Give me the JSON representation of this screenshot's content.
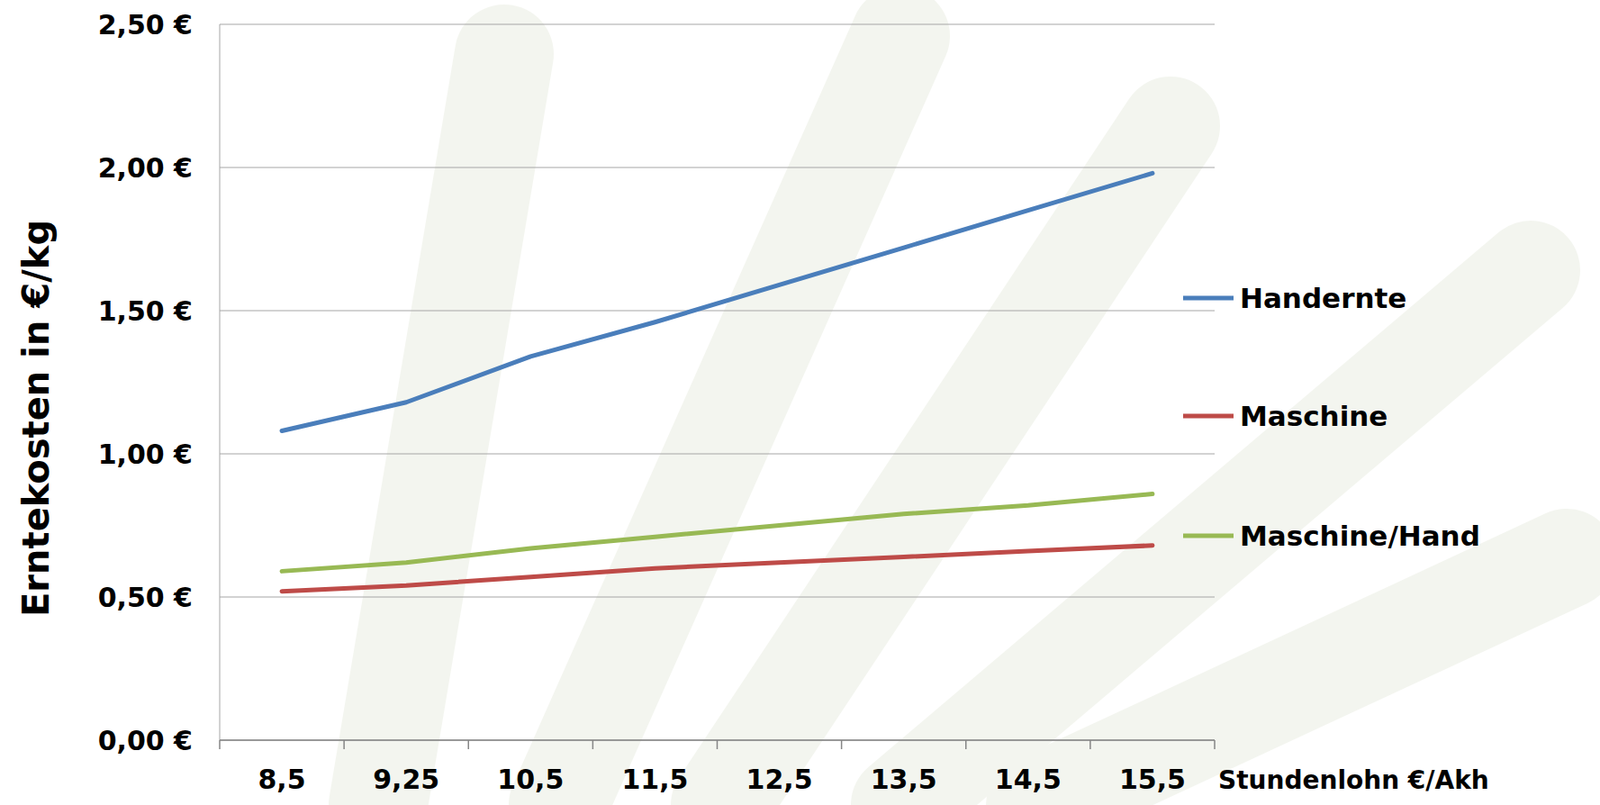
{
  "chart_data": {
    "type": "line",
    "y_label": "Erntekosten in €/kg",
    "x_label": "Stundenlohn €/Akh",
    "categories": [
      "8,5",
      "9,25",
      "10,5",
      "11,5",
      "12,5",
      "13,5",
      "14,5",
      "15,5"
    ],
    "series": [
      {
        "name": "Handernte",
        "color": "#4a7ebb",
        "values": [
          1.08,
          1.18,
          1.34,
          1.46,
          1.59,
          1.72,
          1.85,
          1.98
        ]
      },
      {
        "name": "Maschine",
        "color": "#be4b48",
        "values": [
          0.52,
          0.54,
          0.57,
          0.6,
          0.62,
          0.64,
          0.66,
          0.68
        ]
      },
      {
        "name": "Maschine/Hand",
        "color": "#98b954",
        "values": [
          0.59,
          0.62,
          0.67,
          0.71,
          0.75,
          0.79,
          0.82,
          0.86
        ]
      }
    ],
    "ylim": [
      0,
      2.5
    ],
    "yticks": [
      {
        "value": 0,
        "label": "0,00 €"
      },
      {
        "value": 0.5,
        "label": "0,50 €"
      },
      {
        "value": 1,
        "label": "1,00 €"
      },
      {
        "value": 1.5,
        "label": "1,50 €"
      },
      {
        "value": 2,
        "label": "2,00 €"
      },
      {
        "value": 2.5,
        "label": "2,50 €"
      }
    ],
    "grid": true,
    "legend": "right"
  }
}
